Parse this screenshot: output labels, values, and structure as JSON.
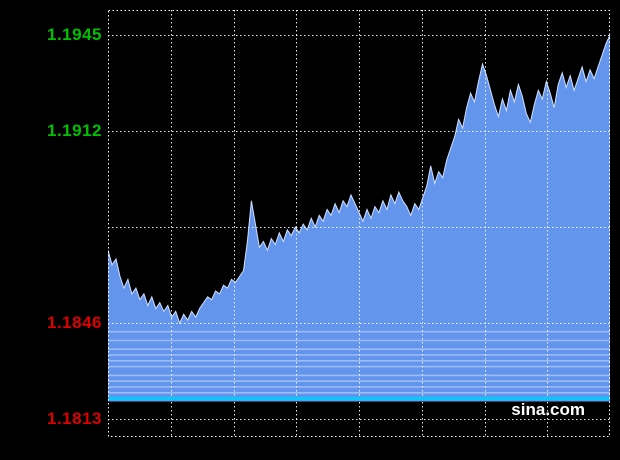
{
  "watermark": "sina.com",
  "chart_data": {
    "type": "area",
    "ylim": [
      1.1813,
      1.1945
    ],
    "grid": true,
    "x_divisions": 8,
    "y_axis_labels": [
      {
        "text": "1.1945",
        "color": "#00BE00",
        "py": 25
      },
      {
        "text": "1.1912",
        "color": "#00BE00",
        "py": 121
      },
      {
        "text": "1.1846",
        "color": "#DC0000",
        "py": 313
      },
      {
        "text": "1.1813",
        "color": "#DC0000",
        "py": 409
      }
    ],
    "y_map": {
      "v1": 1.1945,
      "py1": 25,
      "v2": 1.1813,
      "py2": 409
    },
    "y_gridline_values": [
      1.1945,
      1.1912,
      1.1879,
      1.1846,
      1.1813
    ],
    "baseline_value": 1.1819,
    "reference_line": {
      "value": 1.182,
      "color": "#00CCFF"
    },
    "band_line_values": [
      1.1843,
      1.184,
      1.1837,
      1.1835,
      1.1833,
      1.1831,
      1.1828,
      1.1826,
      1.1824,
      1.1822
    ],
    "colors": {
      "fill": "#6495ED",
      "line": "#CFE0FF",
      "grid": "#FFFFFF",
      "band": "#9CBCF7",
      "border": "#FFFFFF",
      "background": "#000000"
    },
    "series": [
      {
        "name": "price",
        "values": [
          1.1871,
          1.1866,
          1.1868,
          1.1862,
          1.1858,
          1.1861,
          1.1856,
          1.1858,
          1.1854,
          1.1856,
          1.1852,
          1.1855,
          1.1851,
          1.1853,
          1.185,
          1.1852,
          1.1848,
          1.185,
          1.1846,
          1.1849,
          1.1847,
          1.185,
          1.1848,
          1.1851,
          1.1853,
          1.1855,
          1.1854,
          1.1857,
          1.1856,
          1.1859,
          1.1858,
          1.1861,
          1.186,
          1.1862,
          1.1864,
          1.1874,
          1.1888,
          1.188,
          1.1872,
          1.1874,
          1.1871,
          1.1875,
          1.1873,
          1.1877,
          1.1874,
          1.1878,
          1.1876,
          1.1879,
          1.1877,
          1.188,
          1.1878,
          1.1882,
          1.1879,
          1.1883,
          1.1881,
          1.1885,
          1.1883,
          1.1887,
          1.1884,
          1.1888,
          1.1886,
          1.189,
          1.1887,
          1.1884,
          1.1881,
          1.1885,
          1.1882,
          1.1886,
          1.1884,
          1.1888,
          1.1885,
          1.189,
          1.1887,
          1.1891,
          1.1888,
          1.1886,
          1.1883,
          1.1887,
          1.1885,
          1.1889,
          1.1893,
          1.19,
          1.1894,
          1.1898,
          1.1896,
          1.1902,
          1.1906,
          1.191,
          1.1916,
          1.1913,
          1.192,
          1.1925,
          1.1922,
          1.1929,
          1.1935,
          1.1931,
          1.1926,
          1.1921,
          1.1917,
          1.1923,
          1.1919,
          1.1926,
          1.1922,
          1.1928,
          1.1924,
          1.1918,
          1.1915,
          1.1921,
          1.1926,
          1.1923,
          1.1929,
          1.1925,
          1.192,
          1.1928,
          1.1932,
          1.1927,
          1.1931,
          1.1926,
          1.193,
          1.1934,
          1.1929,
          1.1933,
          1.193,
          1.1934,
          1.1938,
          1.1942,
          1.1945
        ]
      }
    ]
  }
}
